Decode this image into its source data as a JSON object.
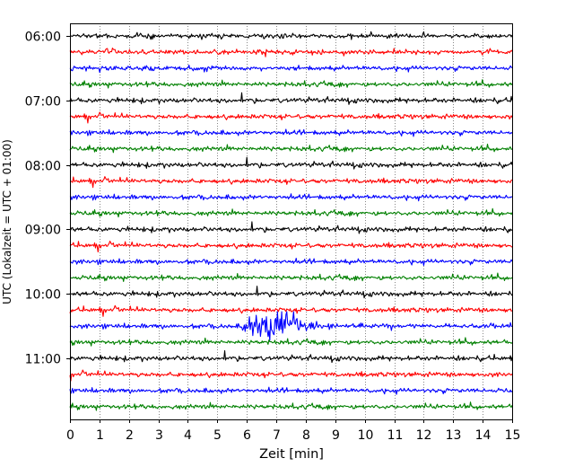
{
  "chart_data": {
    "type": "line",
    "subtype": "helicorder",
    "title": "",
    "xlabel": "Zeit  [min]",
    "ylabel": "UTC (Lokalzeit = UTC + 01:00)",
    "xlim": [
      0,
      15
    ],
    "x_ticks": [
      "0",
      "1",
      "2",
      "3",
      "4",
      "5",
      "6",
      "7",
      "8",
      "9",
      "10",
      "11",
      "12",
      "13",
      "14",
      "15"
    ],
    "y_tick_labels": [
      "06:00",
      "07:00",
      "08:00",
      "09:00",
      "10:00",
      "11:00"
    ],
    "grid": "vertical dotted lines at each minute",
    "trace_colors": [
      "#000000",
      "#ff0000",
      "#0000ff",
      "#008000"
    ],
    "traces": [
      {
        "start": "06:00"
      },
      {
        "start": "06:15"
      },
      {
        "start": "06:30"
      },
      {
        "start": "06:45"
      },
      {
        "start": "07:00"
      },
      {
        "start": "07:15"
      },
      {
        "start": "07:30"
      },
      {
        "start": "07:45"
      },
      {
        "start": "08:00"
      },
      {
        "start": "08:15"
      },
      {
        "start": "08:30"
      },
      {
        "start": "08:45"
      },
      {
        "start": "09:00"
      },
      {
        "start": "09:15"
      },
      {
        "start": "09:30"
      },
      {
        "start": "09:45"
      },
      {
        "start": "10:00"
      },
      {
        "start": "10:15"
      },
      {
        "start": "10:30"
      },
      {
        "start": "10:45"
      },
      {
        "start": "11:00"
      },
      {
        "start": "11:15"
      },
      {
        "start": "11:30"
      },
      {
        "start": "11:45"
      }
    ],
    "events": [
      {
        "trace": "10:30",
        "start_min": 5.8,
        "peak_min": 7.0,
        "end_min": 9.0
      }
    ]
  }
}
